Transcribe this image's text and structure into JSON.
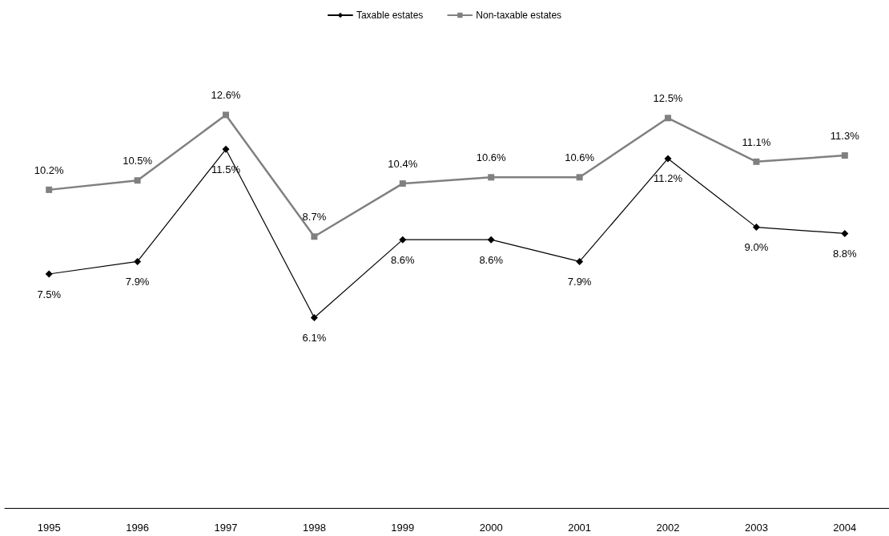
{
  "chart_data": {
    "type": "line",
    "categories": [
      "1995",
      "1996",
      "1997",
      "1998",
      "1999",
      "2000",
      "2001",
      "2002",
      "2003",
      "2004"
    ],
    "series": [
      {
        "name": "Taxable estates",
        "color": "#000000",
        "marker": "diamond",
        "values": [
          7.5,
          7.9,
          11.5,
          6.1,
          8.6,
          8.6,
          7.9,
          11.2,
          9.0,
          8.8
        ],
        "value_labels": [
          "7.5%",
          "7.9%",
          "11.5%",
          "6.1%",
          "8.6%",
          "8.6%",
          "7.9%",
          "11.2%",
          "9.0%",
          "8.8%"
        ]
      },
      {
        "name": "Non-taxable estates",
        "color": "#808080",
        "marker": "square",
        "values": [
          10.2,
          10.5,
          12.6,
          8.7,
          10.4,
          10.6,
          10.6,
          12.5,
          11.1,
          11.3
        ],
        "value_labels": [
          "10.2%",
          "10.5%",
          "12.6%",
          "8.7%",
          "10.4%",
          "10.6%",
          "10.6%",
          "12.5%",
          "11.1%",
          "11.3%"
        ]
      }
    ],
    "tick_labels": "x",
    "grid": false,
    "legend": "top",
    "line_style": "solid"
  }
}
